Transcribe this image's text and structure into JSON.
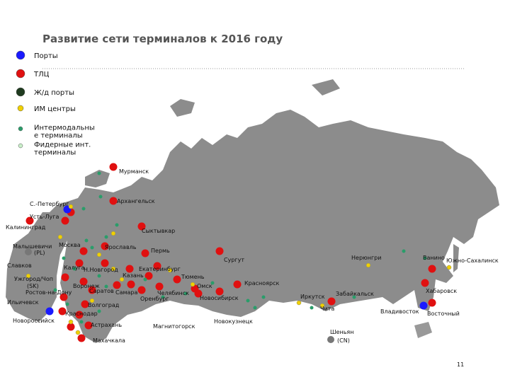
{
  "title": "Развитие сети терминалов к 2016 году",
  "legend": [
    {
      "lines": [
        "Порты"
      ]
    },
    {
      "lines": [
        "ТЛЦ"
      ]
    },
    {
      "lines": [
        "Ж/д порты"
      ]
    },
    {
      "lines": [
        "ИМ центры"
      ]
    },
    {
      "lines": [
        "Интермодальны",
        "е терминалы"
      ]
    },
    {
      "lines": [
        "Фидерные инт.",
        "терминалы"
      ]
    }
  ],
  "cities": [
    "Мурманск",
    "Архангельск",
    "С.-Петербург",
    "Усть-Луга",
    "Калининград",
    "Сыктывкар",
    "Малышевичи",
    "(PL)",
    "Москва",
    "Ярославль",
    "Пермь",
    "Сургут",
    "Нерюнгри",
    "Ванино",
    "Южно-Сахалинск",
    "Славков",
    "Калуга",
    "Н.Новгород",
    "Екатеринбург",
    "Казань",
    "Тюмень",
    "Ужгород/Чоп",
    "(SK)",
    "Воронеж",
    "Омск",
    "Красноярск",
    "Ростов-на-Дону",
    "Саратов",
    "Самара",
    "Челябинск",
    "Новосибирск",
    "Оренбург",
    "Иркутск",
    "Забайкальск",
    "Хабаровск",
    "Ильичевск",
    "Волгоград",
    "Чита",
    "Владивосток",
    "Восточный",
    "Краснодар",
    "Новороссийск",
    "Новокузнецк",
    "Астрахань",
    "Магнитогорск",
    "Шеньян",
    "(CN)",
    "Махачкала"
  ],
  "page_number": "11"
}
